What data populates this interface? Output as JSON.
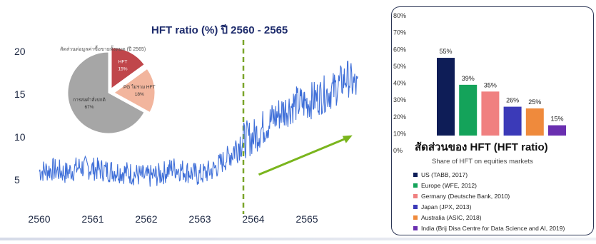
{
  "chart_data": [
    {
      "type": "line",
      "title": "HFT ratio (%) ปี 2560 - 2565",
      "x_ticks": [
        "2560",
        "2561",
        "2562",
        "2563",
        "2564",
        "2565"
      ],
      "y_ticks": [
        5,
        10,
        15,
        20
      ],
      "ylim": [
        2,
        21
      ],
      "xlim": [
        2560,
        2566
      ],
      "vertical_marker_x": 2564,
      "trend_arrow": {
        "from": [
          2564.1,
          5.6
        ],
        "to": [
          2565.85,
          10.2
        ]
      },
      "series": [
        {
          "x": [
            2560.0,
            2560.25,
            2560.5,
            2560.75,
            2561.0,
            2561.25,
            2561.5,
            2561.75,
            2562.0,
            2562.25,
            2562.5,
            2562.75,
            2563.0,
            2563.25,
            2563.5,
            2563.75,
            2564.0,
            2564.25,
            2564.5,
            2564.75,
            2565.0,
            2565.25,
            2565.5,
            2565.75,
            2565.95
          ],
          "values": [
            6.0,
            6.2,
            5.8,
            6.5,
            6.3,
            6.1,
            6.0,
            5.7,
            5.3,
            5.6,
            6.4,
            6.0,
            5.5,
            6.2,
            7.5,
            9.5,
            10.0,
            11.5,
            12.8,
            13.8,
            14.0,
            14.8,
            15.5,
            17.0,
            15.6
          ]
        }
      ],
      "inset_pie": {
        "title": "สัดส่วนต่อมูลค่าซื้อขายทั้งหมด (ปี 2565)",
        "slices": [
          {
            "label": "HFT",
            "value": 15,
            "value_label": "15%",
            "color": "#c0464b"
          },
          {
            "label": "PG ไม่รวม HFT",
            "value": 18,
            "value_label": "18%",
            "color": "#f2b59d"
          },
          {
            "label": "การส่งคำสั่งปกติ",
            "value": 67,
            "value_label": "67%",
            "color": "#a6a6a6"
          }
        ]
      }
    },
    {
      "type": "bar",
      "title": "สัดส่วนของ HFT (HFT ratio)",
      "subtitle": "Share of HFT on equities markets",
      "ylim": [
        0,
        80
      ],
      "y_ticks": [
        "0%",
        "10%",
        "20%",
        "30%",
        "40%",
        "50%",
        "60%",
        "70%",
        "80%"
      ],
      "categories": [
        "US (TABB, 2017)",
        "Europe (WFE, 2012)",
        "Germany (Deutsche Bank, 2010)",
        "Japan (JPX, 2013)",
        "Australia (ASIC, 2018)",
        "India (Brij Disa Centre for Data Science and AI, 2019)"
      ],
      "values": [
        55,
        39,
        35,
        26,
        25,
        15
      ],
      "value_labels": [
        "55%",
        "39%",
        "35%",
        "26%",
        "25%",
        "15%"
      ],
      "colors": [
        "#0e1d57",
        "#14a35a",
        "#f08080",
        "#3b3ab8",
        "#ef8a3c",
        "#6a2fb0"
      ]
    }
  ]
}
